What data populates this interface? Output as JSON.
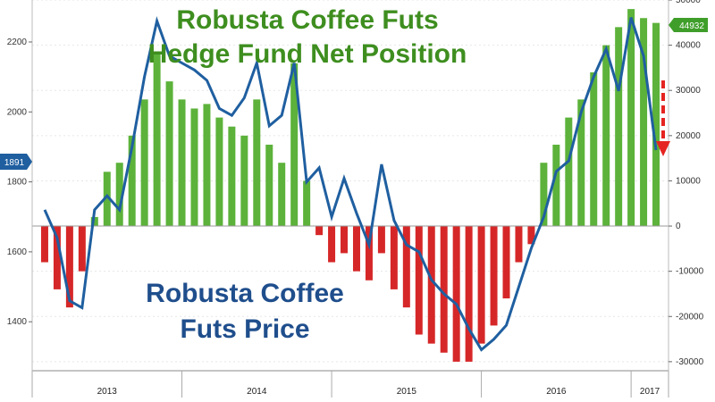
{
  "chart_data": {
    "type": "bar+line",
    "title_lines": [
      "Robusta Coffee Futs",
      "Hedge Fund Net Position"
    ],
    "price_label_lines": [
      "Robusta Coffee",
      "Futs Price"
    ],
    "x_years": [
      "2013",
      "2014",
      "2015",
      "2016",
      "2017"
    ],
    "left_axis": {
      "ticks": [
        1400,
        1600,
        1800,
        2000,
        2200
      ],
      "ylim": [
        1260,
        2320
      ]
    },
    "right_axis": {
      "ticks": [
        -30000,
        -20000,
        -10000,
        0,
        10000,
        20000,
        30000,
        40000,
        50000
      ],
      "ylim": [
        -32000,
        50000
      ]
    },
    "last_price_badge": "1891",
    "last_position_badge": "44932",
    "colors": {
      "positive_bars": "#5cb23a",
      "negative_bars": "#d62728",
      "price_line": "#1f5fa0",
      "arrow": "#e52421",
      "badge_blue": "#1f5fa0",
      "badge_green": "#3f9e2a"
    },
    "annotation": "red dashed arrow pointing down",
    "series": [
      {
        "name": "Robusta Coffee Futs Price",
        "axis": "left",
        "x": [
          "2013-02",
          "2013-03",
          "2013-04",
          "2013-05",
          "2013-06",
          "2013-07",
          "2013-08",
          "2013-09",
          "2013-10",
          "2013-11",
          "2013-12",
          "2014-01",
          "2014-02",
          "2014-03",
          "2014-04",
          "2014-05",
          "2014-06",
          "2014-07",
          "2014-08",
          "2014-09",
          "2014-10",
          "2014-11",
          "2014-12",
          "2015-01",
          "2015-02",
          "2015-03",
          "2015-04",
          "2015-05",
          "2015-06",
          "2015-07",
          "2015-08",
          "2015-09",
          "2015-10",
          "2015-11",
          "2015-12",
          "2016-01",
          "2016-02",
          "2016-03",
          "2016-04",
          "2016-05",
          "2016-06",
          "2016-07",
          "2016-08",
          "2016-09",
          "2016-10",
          "2016-11",
          "2016-12",
          "2017-01",
          "2017-02",
          "2017-03"
        ],
        "values": [
          1720,
          1640,
          1460,
          1440,
          1720,
          1760,
          1720,
          1900,
          2100,
          2260,
          2160,
          2140,
          2120,
          2090,
          2010,
          1990,
          2040,
          2140,
          1960,
          1990,
          2140,
          1800,
          1840,
          1700,
          1810,
          1710,
          1620,
          1850,
          1690,
          1620,
          1600,
          1520,
          1480,
          1450,
          1380,
          1320,
          1350,
          1390,
          1500,
          1610,
          1700,
          1830,
          1860,
          2000,
          2100,
          2180,
          2060,
          2270,
          2160,
          1891
        ]
      },
      {
        "name": "Hedge Fund Net Position",
        "axis": "right",
        "x": [
          "2013-02",
          "2013-03",
          "2013-04",
          "2013-05",
          "2013-06",
          "2013-07",
          "2013-08",
          "2013-09",
          "2013-10",
          "2013-11",
          "2013-12",
          "2014-01",
          "2014-02",
          "2014-03",
          "2014-04",
          "2014-05",
          "2014-06",
          "2014-07",
          "2014-08",
          "2014-09",
          "2014-10",
          "2014-11",
          "2014-12",
          "2015-01",
          "2015-02",
          "2015-03",
          "2015-04",
          "2015-05",
          "2015-06",
          "2015-07",
          "2015-08",
          "2015-09",
          "2015-10",
          "2015-11",
          "2015-12",
          "2016-01",
          "2016-02",
          "2016-03",
          "2016-04",
          "2016-05",
          "2016-06",
          "2016-07",
          "2016-08",
          "2016-09",
          "2016-10",
          "2016-11",
          "2016-12",
          "2017-01",
          "2017-02",
          "2017-03"
        ],
        "values": [
          -8000,
          -14000,
          -18000,
          -10000,
          2000,
          12000,
          14000,
          20000,
          28000,
          38000,
          32000,
          28000,
          26000,
          27000,
          24000,
          22000,
          20000,
          28000,
          18000,
          14000,
          36000,
          10000,
          -2000,
          -8000,
          -6000,
          -10000,
          -12000,
          -6000,
          -14000,
          -18000,
          -24000,
          -26000,
          -28000,
          -30000,
          -30000,
          -26000,
          -22000,
          -16000,
          -8000,
          -4000,
          14000,
          18000,
          24000,
          28000,
          34000,
          40000,
          44000,
          48000,
          46000,
          44932
        ]
      }
    ]
  }
}
